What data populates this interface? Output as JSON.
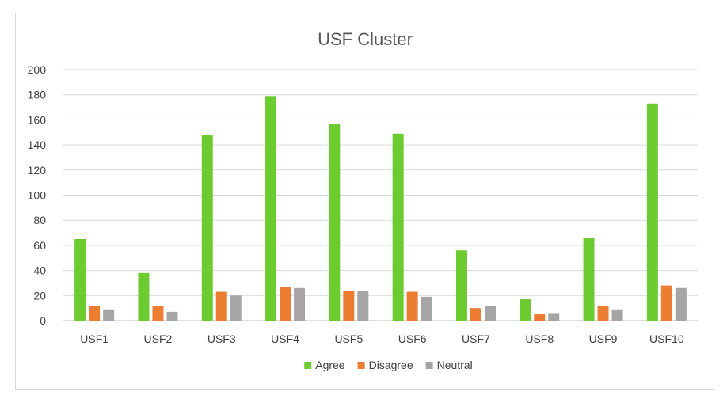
{
  "chart_data": {
    "type": "bar",
    "title": "USF Cluster",
    "xlabel": "",
    "ylabel": "",
    "categories": [
      "USF1",
      "USF2",
      "USF3",
      "USF4",
      "USF5",
      "USF6",
      "USF7",
      "USF8",
      "USF9",
      "USF10"
    ],
    "series": [
      {
        "name": "Agree",
        "color": "#6bcb2f",
        "values": [
          65,
          38,
          148,
          179,
          157,
          149,
          56,
          17,
          66,
          173
        ]
      },
      {
        "name": "Disagree",
        "color": "#ed7d31",
        "values": [
          12,
          12,
          23,
          27,
          24,
          23,
          10,
          5,
          12,
          28
        ]
      },
      {
        "name": "Neutral",
        "color": "#a5a5a5",
        "values": [
          9,
          7,
          20,
          26,
          24,
          19,
          12,
          6,
          9,
          26
        ]
      }
    ],
    "ylim": [
      0,
      200
    ],
    "yticks": [
      0,
      20,
      40,
      60,
      80,
      100,
      120,
      140,
      160,
      180,
      200
    ],
    "grid": true,
    "legend_position": "bottom"
  }
}
